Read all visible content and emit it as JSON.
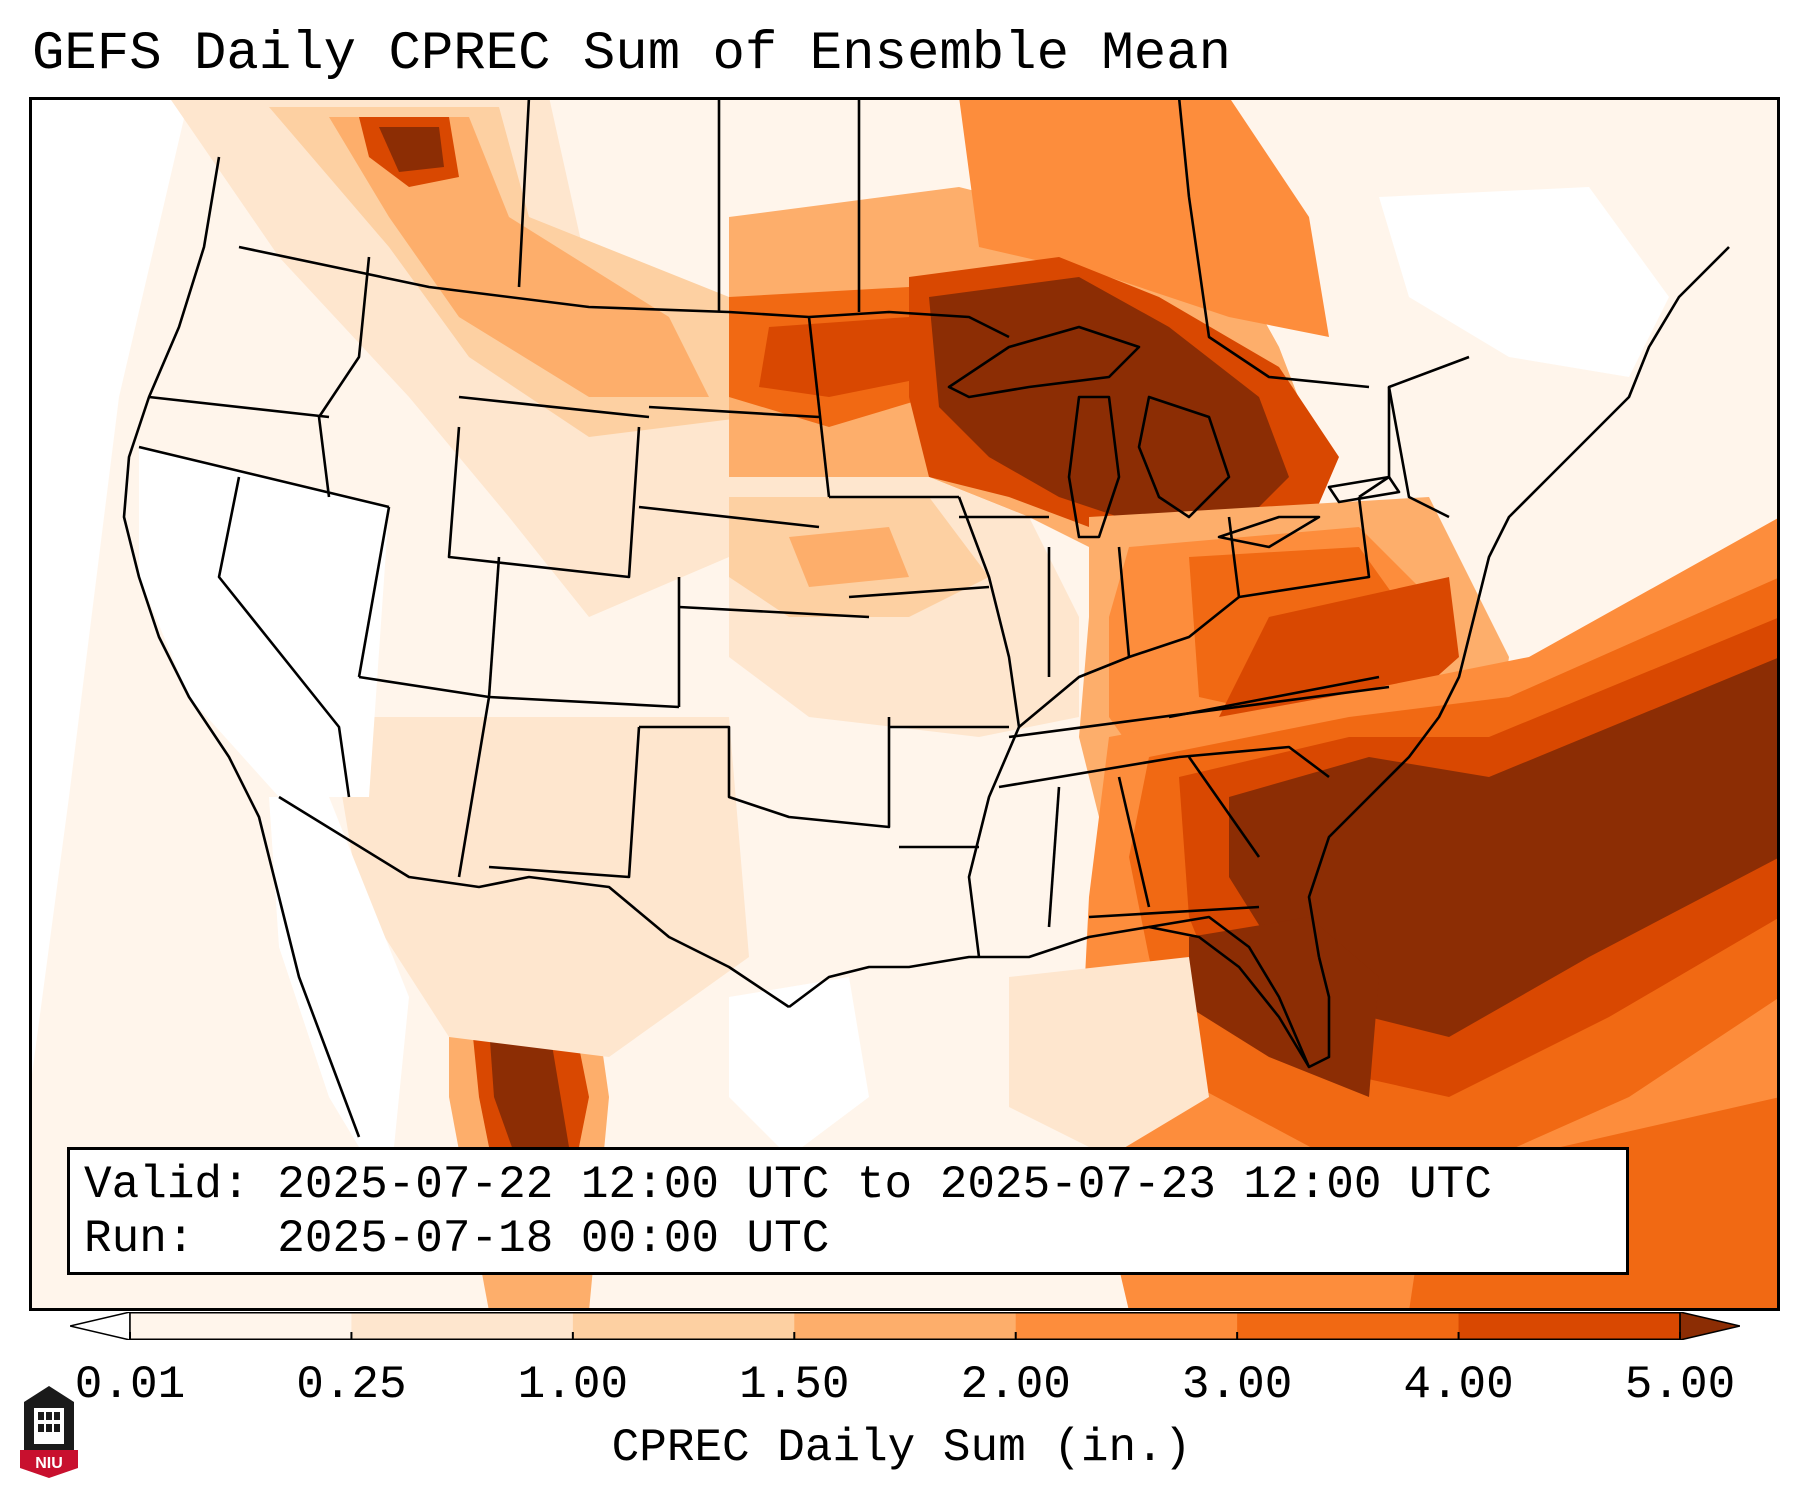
{
  "title": "GEFS Daily CPREC Sum of Ensemble Mean",
  "info": {
    "valid_label": "Valid:",
    "valid_value": "2025-07-22 12:00 UTC to 2025-07-23 12:00 UTC",
    "run_label": "Run:",
    "run_value": "2025-07-18 00:00 UTC"
  },
  "colorbar": {
    "label": "CPREC Daily Sum (in.)",
    "ticks": [
      "0.01",
      "0.25",
      "1.00",
      "1.50",
      "2.00",
      "3.00",
      "4.00",
      "5.00"
    ],
    "colors": [
      "#fff5eb",
      "#fee6ce",
      "#fdd0a2",
      "#fdae6b",
      "#fd8d3c",
      "#f16913",
      "#d94801",
      "#8c2d04"
    ],
    "under_color": "#ffffff",
    "over_color": "#7f2704"
  },
  "logo": {
    "text": "NIU",
    "colors": [
      "#1a1a1a",
      "#c8102e"
    ]
  },
  "colors": {
    "state_borders": "#000000",
    "frame": "#000000"
  }
}
